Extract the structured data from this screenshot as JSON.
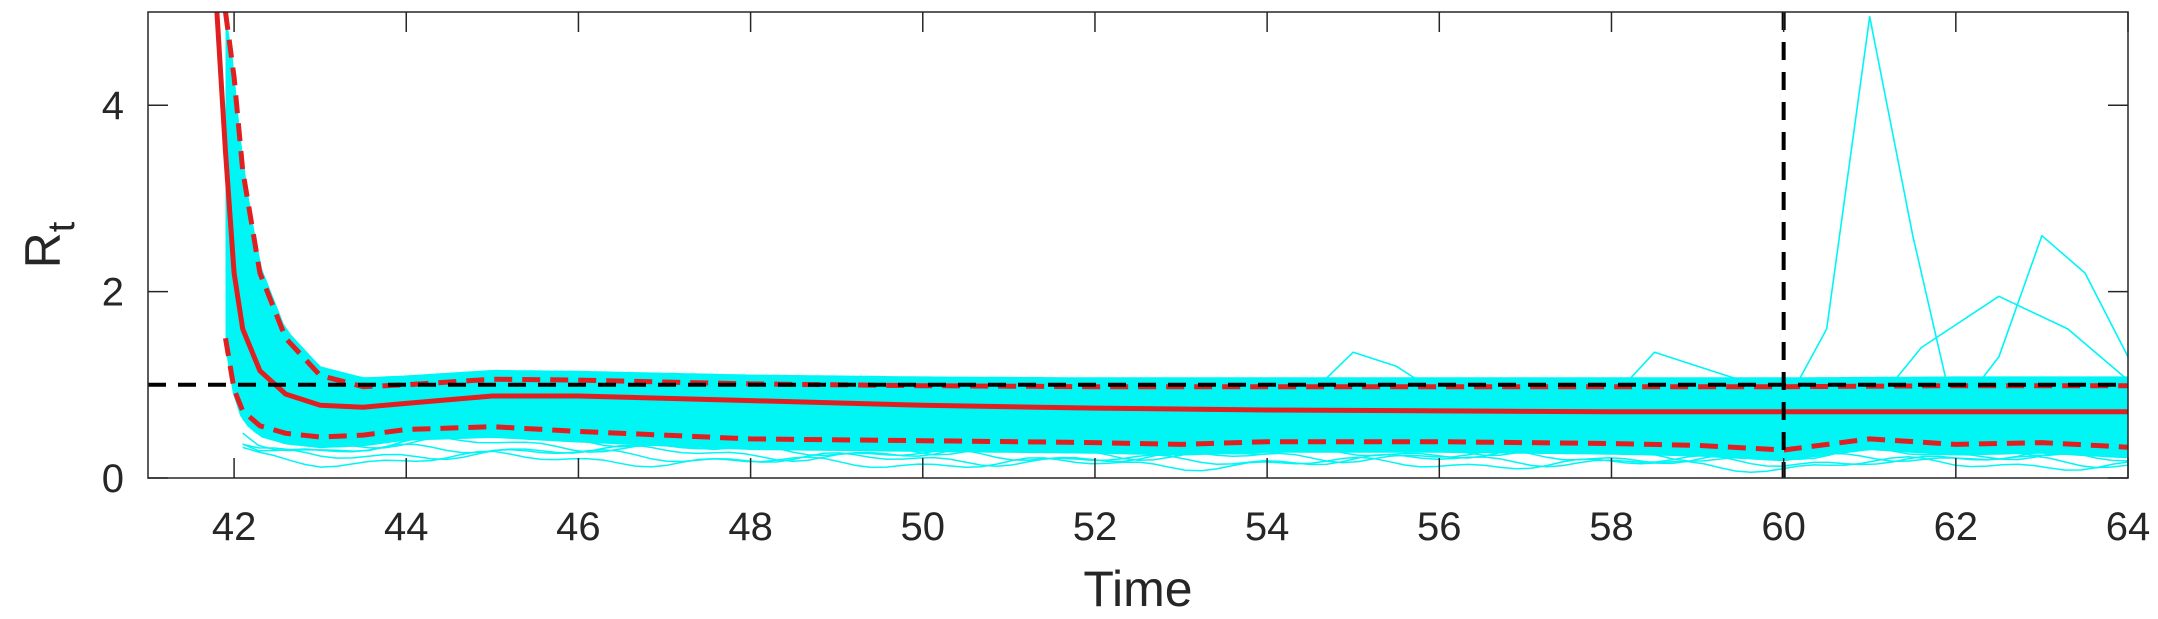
{
  "chart_data": {
    "type": "line",
    "xlabel": "Time",
    "ylabel": "R",
    "ylabel_subscript": "t",
    "xlim": [
      41,
      64
    ],
    "ylim": [
      0,
      5
    ],
    "xticks": [
      42,
      44,
      46,
      48,
      50,
      52,
      54,
      56,
      58,
      60,
      62,
      64
    ],
    "yticks": [
      0,
      2,
      4
    ],
    "grid": false,
    "reference_lines": [
      {
        "orientation": "horizontal",
        "value": 1,
        "style": "dashed",
        "color": "#000000"
      },
      {
        "orientation": "vertical",
        "value": 60,
        "style": "dashed",
        "color": "#000000"
      }
    ],
    "series": [
      {
        "role": "median",
        "color": "#e02020",
        "style": "solid",
        "x": [
          41.8,
          41.9,
          42.0,
          42.1,
          42.3,
          42.6,
          43.0,
          43.5,
          44.0,
          45.0,
          46.0,
          48.0,
          50.0,
          52.0,
          54.0,
          56.0,
          58.0,
          60.0,
          62.0,
          64.0
        ],
        "y": [
          5.0,
          3.5,
          2.2,
          1.6,
          1.15,
          0.9,
          0.78,
          0.76,
          0.8,
          0.88,
          0.88,
          0.83,
          0.78,
          0.75,
          0.73,
          0.72,
          0.71,
          0.71,
          0.71,
          0.71
        ]
      },
      {
        "role": "upper quantile",
        "color": "#e02020",
        "style": "dashed",
        "x": [
          41.9,
          42.0,
          42.1,
          42.3,
          42.6,
          43.0,
          43.5,
          44.0,
          45.0,
          46.0,
          48.0,
          50.0,
          52.0,
          54.0,
          56.0,
          58.0,
          60.0,
          62.0,
          64.0
        ],
        "y": [
          5.0,
          4.3,
          3.3,
          2.2,
          1.5,
          1.1,
          0.98,
          1.0,
          1.06,
          1.05,
          1.01,
          0.99,
          0.98,
          0.98,
          0.98,
          0.98,
          0.98,
          0.99,
          0.99
        ]
      },
      {
        "role": "lower quantile",
        "color": "#e02020",
        "style": "dashed",
        "x": [
          41.9,
          42.0,
          42.1,
          42.3,
          42.6,
          43.0,
          43.5,
          44.0,
          45.0,
          46.0,
          48.0,
          50.0,
          52.0,
          53.0,
          54.0,
          56.0,
          58.0,
          59.0,
          60.0,
          61.0,
          62.0,
          63.0,
          64.0
        ],
        "y": [
          1.5,
          0.95,
          0.72,
          0.56,
          0.48,
          0.44,
          0.46,
          0.52,
          0.55,
          0.5,
          0.42,
          0.4,
          0.38,
          0.36,
          0.39,
          0.39,
          0.37,
          0.35,
          0.3,
          0.42,
          0.36,
          0.38,
          0.33
        ]
      },
      {
        "role": "posterior sample",
        "color": "#00f5f5",
        "style": "solid",
        "x": [
          41.9,
          42.0,
          42.2,
          42.5,
          43.0,
          44.0,
          46.0,
          48.0,
          50.0,
          52.0,
          54.0,
          56.0,
          58.0,
          60.0,
          60.5,
          61.0,
          61.5,
          62.0,
          63.0,
          64.0
        ],
        "y": [
          5.0,
          3.8,
          2.4,
          1.5,
          1.0,
          0.85,
          0.8,
          0.75,
          0.72,
          0.72,
          0.7,
          0.7,
          0.72,
          0.75,
          1.6,
          4.95,
          2.6,
          0.6,
          0.55,
          0.5
        ]
      },
      {
        "role": "posterior sample",
        "color": "#00f5f5",
        "style": "solid",
        "x": [
          41.9,
          42.0,
          42.2,
          42.5,
          43.0,
          44.0,
          46.0,
          48.0,
          50.0,
          52.0,
          54.0,
          56.0,
          58.0,
          60.0,
          61.0,
          61.6,
          62.5,
          63.3,
          64.0
        ],
        "y": [
          5.0,
          3.6,
          2.2,
          1.4,
          0.95,
          0.85,
          0.85,
          0.8,
          0.75,
          0.73,
          0.72,
          0.71,
          0.7,
          0.7,
          0.72,
          1.4,
          1.95,
          1.6,
          1.05
        ]
      },
      {
        "role": "posterior sample",
        "color": "#00f5f5",
        "style": "solid",
        "x": [
          41.9,
          42.0,
          42.2,
          42.5,
          43.0,
          44.0,
          46.0,
          48.0,
          50.0,
          52.0,
          54.0,
          56.0,
          58.0,
          60.0,
          61.0,
          62.0,
          62.5,
          63.0,
          63.5,
          64.0
        ],
        "y": [
          5.0,
          3.4,
          2.0,
          1.3,
          0.9,
          0.8,
          0.8,
          0.76,
          0.72,
          0.7,
          0.7,
          0.7,
          0.69,
          0.7,
          0.7,
          0.7,
          1.3,
          2.6,
          2.2,
          1.3
        ]
      },
      {
        "role": "posterior sample",
        "color": "#00f5f5",
        "style": "solid",
        "x": [
          41.9,
          42.0,
          42.2,
          42.5,
          43.0,
          44.0,
          46.0,
          48.0,
          50.0,
          52.0,
          54.0,
          54.5,
          55.0,
          55.5,
          56.0,
          58.0,
          58.5,
          59.0,
          60.0,
          62.0,
          64.0
        ],
        "y": [
          5.0,
          3.6,
          2.3,
          1.4,
          0.95,
          0.88,
          0.88,
          0.83,
          0.8,
          0.79,
          0.8,
          0.9,
          1.35,
          1.2,
          0.9,
          0.85,
          1.35,
          1.2,
          0.9,
          0.85,
          0.85
        ]
      }
    ]
  }
}
